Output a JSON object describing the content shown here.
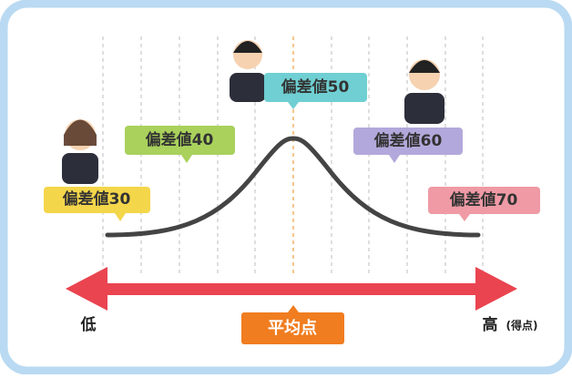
{
  "labels": [
    {
      "text": "偏差値30",
      "color": "#f4d64a"
    },
    {
      "text": "偏差値40",
      "color": "#a9d15c"
    },
    {
      "text": "偏差値50",
      "color": "#6fcfd2"
    },
    {
      "text": "偏差値60",
      "color": "#b3a8db"
    },
    {
      "text": "偏差値70",
      "color": "#ef9aa5"
    }
  ],
  "axis": {
    "low": "低",
    "high": "高",
    "unit": "(得点)",
    "average": "平均点"
  }
}
